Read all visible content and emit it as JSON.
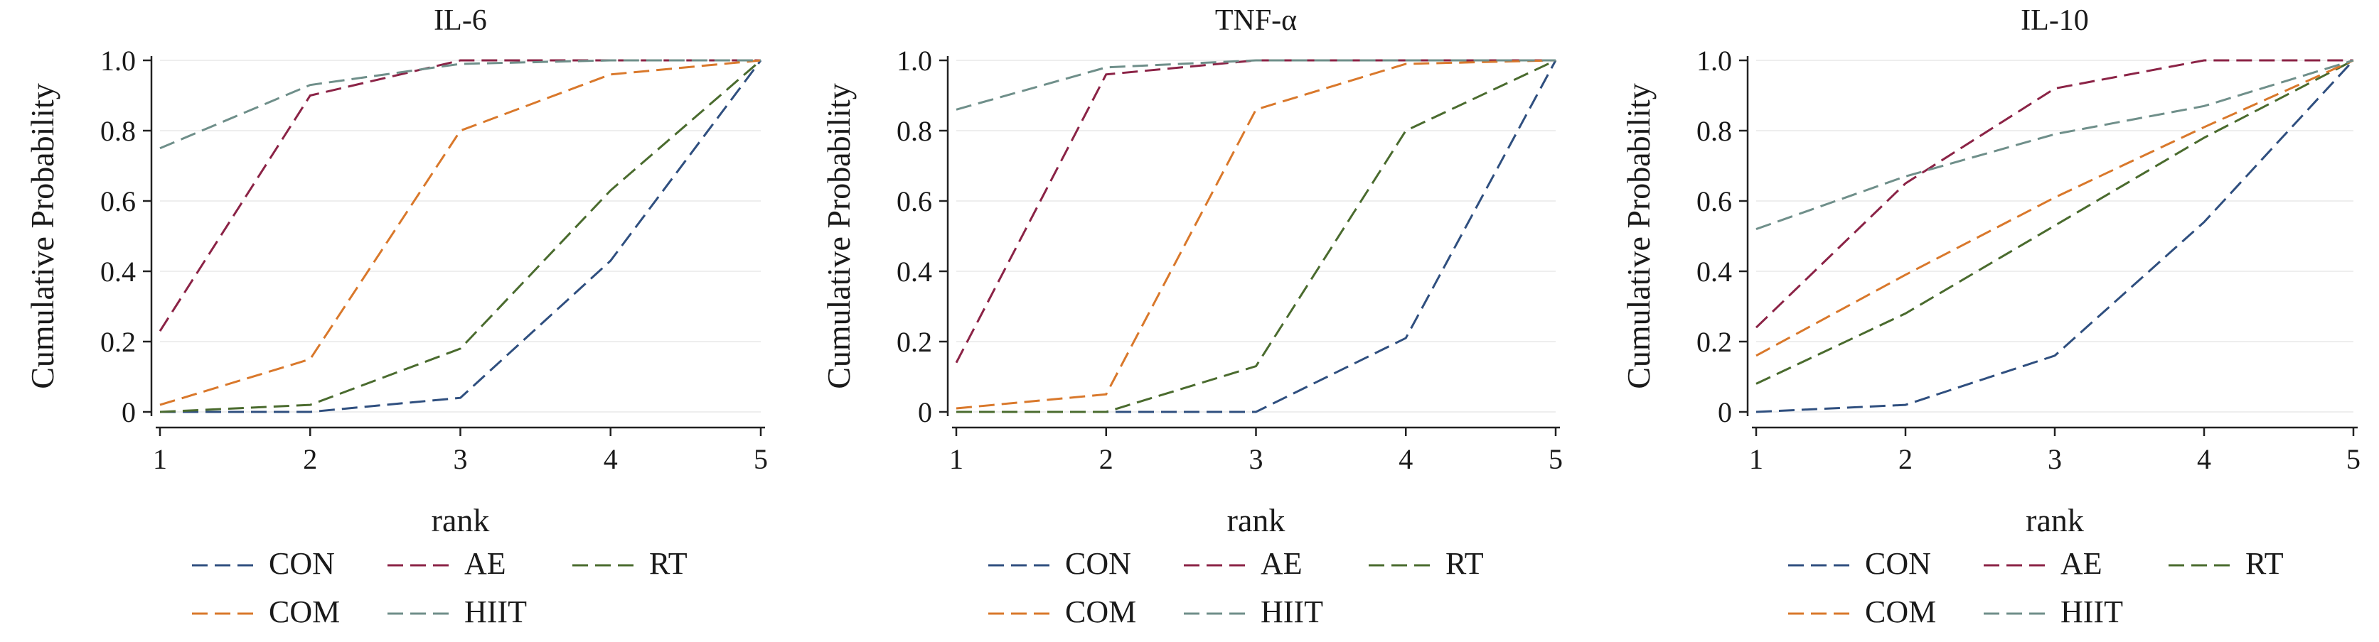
{
  "chart_data": [
    {
      "type": "line",
      "title": "IL-6",
      "xlabel": "rank",
      "ylabel": "Cumulative Probability",
      "x": [
        1,
        2,
        3,
        4,
        5
      ],
      "xlim": [
        1,
        5
      ],
      "ylim": [
        0,
        1
      ],
      "yticks": [
        "0",
        "0.2",
        "0.4",
        "0.6",
        "0.8",
        "1.0"
      ],
      "xticks": [
        "1",
        "2",
        "3",
        "4",
        "5"
      ],
      "grid": true,
      "legend_position": "bottom",
      "series": [
        {
          "name": "CON",
          "color": "#2f4f7f",
          "values": [
            0.0,
            0.0,
            0.04,
            0.43,
            1.0
          ]
        },
        {
          "name": "AE",
          "color": "#8b2346",
          "values": [
            0.23,
            0.9,
            1.0,
            1.0,
            1.0
          ]
        },
        {
          "name": "RT",
          "color": "#4a6b2e",
          "values": [
            0.0,
            0.02,
            0.18,
            0.63,
            1.0
          ]
        },
        {
          "name": "COM",
          "color": "#d9782b",
          "values": [
            0.02,
            0.15,
            0.8,
            0.96,
            1.0
          ]
        },
        {
          "name": "HIIT",
          "color": "#6f8f8a",
          "values": [
            0.75,
            0.93,
            0.99,
            1.0,
            1.0
          ]
        }
      ]
    },
    {
      "type": "line",
      "title": "TNF-α",
      "xlabel": "rank",
      "ylabel": "Cumulative Probability",
      "x": [
        1,
        2,
        3,
        4,
        5
      ],
      "xlim": [
        1,
        5
      ],
      "ylim": [
        0,
        1
      ],
      "yticks": [
        "0",
        "0.2",
        "0.4",
        "0.6",
        "0.8",
        "1.0"
      ],
      "xticks": [
        "1",
        "2",
        "3",
        "4",
        "5"
      ],
      "grid": true,
      "legend_position": "bottom",
      "series": [
        {
          "name": "CON",
          "color": "#2f4f7f",
          "values": [
            0.0,
            0.0,
            0.0,
            0.21,
            1.0
          ]
        },
        {
          "name": "AE",
          "color": "#8b2346",
          "values": [
            0.14,
            0.96,
            1.0,
            1.0,
            1.0
          ]
        },
        {
          "name": "RT",
          "color": "#4a6b2e",
          "values": [
            0.0,
            0.0,
            0.13,
            0.8,
            1.0
          ]
        },
        {
          "name": "COM",
          "color": "#d9782b",
          "values": [
            0.01,
            0.05,
            0.86,
            0.99,
            1.0
          ]
        },
        {
          "name": "HIIT",
          "color": "#6f8f8a",
          "values": [
            0.86,
            0.98,
            1.0,
            1.0,
            1.0
          ]
        }
      ]
    },
    {
      "type": "line",
      "title": "IL-10",
      "xlabel": "rank",
      "ylabel": "Cumulative Probability",
      "x": [
        1,
        2,
        3,
        4,
        5
      ],
      "xlim": [
        1,
        5
      ],
      "ylim": [
        0,
        1
      ],
      "yticks": [
        "0",
        "0.2",
        "0.4",
        "0.6",
        "0.8",
        "1.0"
      ],
      "xticks": [
        "1",
        "2",
        "3",
        "4",
        "5"
      ],
      "grid": true,
      "legend_position": "bottom",
      "series": [
        {
          "name": "CON",
          "color": "#2f4f7f",
          "values": [
            0.0,
            0.02,
            0.16,
            0.54,
            1.0
          ]
        },
        {
          "name": "AE",
          "color": "#8b2346",
          "values": [
            0.24,
            0.65,
            0.92,
            1.0,
            1.0
          ]
        },
        {
          "name": "RT",
          "color": "#4a6b2e",
          "values": [
            0.08,
            0.28,
            0.53,
            0.78,
            1.0
          ]
        },
        {
          "name": "COM",
          "color": "#d9782b",
          "values": [
            0.16,
            0.39,
            0.61,
            0.81,
            1.0
          ]
        },
        {
          "name": "HIIT",
          "color": "#6f8f8a",
          "values": [
            0.52,
            0.67,
            0.79,
            0.87,
            1.0
          ]
        }
      ]
    }
  ]
}
